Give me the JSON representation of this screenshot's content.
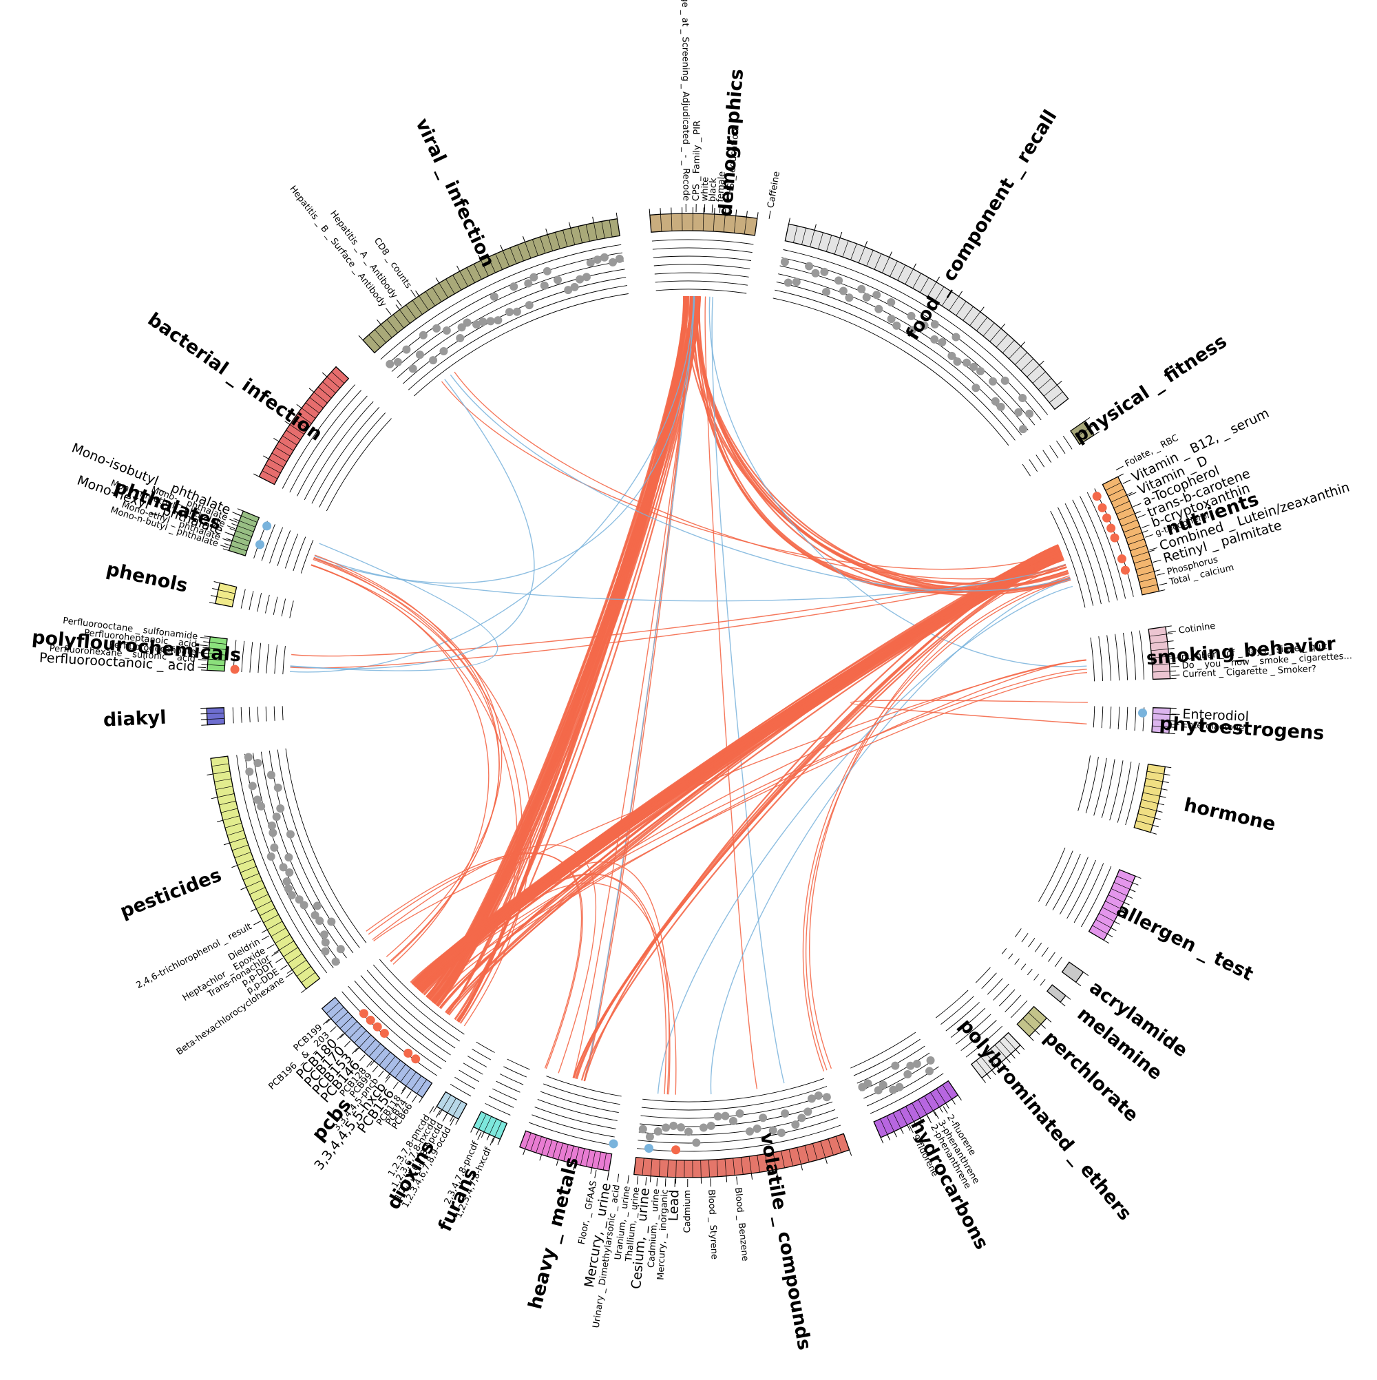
{
  "colors": {
    "positive": "#f4694a",
    "negative": "#79b3dc",
    "point_default": "#999999",
    "track_line": "#000000"
  },
  "categories": [
    {
      "name": "demographics",
      "color": "#c9ad7e",
      "start": -4.6,
      "end": 8.2,
      "n": 10
    },
    {
      "name": "food_component_recall",
      "color": "#e4e4e4",
      "start": 12.0,
      "end": 52.0,
      "n": 38,
      "gray_points": true
    },
    {
      "name": "physical_fitness",
      "color": "#a7a779",
      "start": 55.3,
      "end": 57.3,
      "n": 2
    },
    {
      "name": "nutrients",
      "color": "#f3b66f",
      "start": 63.0,
      "end": 77.5,
      "n": 18
    },
    {
      "name": "smoking_behavior",
      "color": "#ecc5d1",
      "start": 81.8,
      "end": 88.0,
      "n": 7
    },
    {
      "name": "phytoestrogens",
      "color": "#dcb5ee",
      "start": 91.5,
      "end": 94.5,
      "n": 4
    },
    {
      "name": "hormone",
      "color": "#f0df83",
      "start": 98.5,
      "end": 106.5,
      "n": 9
    },
    {
      "name": "allergen_test",
      "color": "#e496ec",
      "start": 112.0,
      "end": 120.5,
      "n": 10
    },
    {
      "name": "acrylamide",
      "color": "#c9c9c9",
      "start": 125.0,
      "end": 126.5,
      "n": 1
    },
    {
      "name": "melamine",
      "color": "#c9c9c9",
      "start": 128.5,
      "end": 129.5,
      "n": 1
    },
    {
      "name": "perchlorate",
      "color": "#c3c38a",
      "start": 132.0,
      "end": 135.0,
      "n": 3
    },
    {
      "name": "polybrominated_ethers",
      "color": "#e8e8e8",
      "start": 136.5,
      "end": 142.5,
      "n": 8
    },
    {
      "name": "hydrocarbons",
      "color": "#b766e0",
      "start": 146.0,
      "end": 156.5,
      "n": 12,
      "gray_points": true
    },
    {
      "name": "volatile_compounds",
      "color": "#e4766a",
      "start": 160.5,
      "end": 186.5,
      "n": 26,
      "gray_points": true
    },
    {
      "name": "heavy_metals",
      "color": "#e87cd2",
      "start": 189.5,
      "end": 200.5,
      "n": 16
    },
    {
      "name": "furans",
      "color": "#7de8dd",
      "start": 203.0,
      "end": 206.5,
      "n": 5
    },
    {
      "name": "dioxins",
      "color": "#b8d8e8",
      "start": 208.5,
      "end": 211.5,
      "n": 4
    },
    {
      "name": "pcbs",
      "color": "#a9bde8",
      "start": 213.5,
      "end": 229.5,
      "n": 20
    },
    {
      "name": "pesticides",
      "color": "#e2ec8e",
      "start": 232.5,
      "end": 262.5,
      "n": 32,
      "gray_points": true
    },
    {
      "name": "diakyl",
      "color": "#6e6ed0",
      "start": 266.5,
      "end": 268.5,
      "n": 3
    },
    {
      "name": "polyflourochemicals",
      "color": "#8be07c",
      "start": 273.0,
      "end": 277.0,
      "n": 6
    },
    {
      "name": "phenols",
      "color": "#f0ea8a",
      "start": 281.0,
      "end": 283.5,
      "n": 3
    },
    {
      "name": "phthalates",
      "color": "#98bf84",
      "start": 287.5,
      "end": 292.5,
      "n": 8
    },
    {
      "name": "bacterial_infection",
      "color": "#e66d6d",
      "start": 297.0,
      "end": 313.0,
      "n": 20
    },
    {
      "name": "viral_infection",
      "color": "#a9a979",
      "start": 317.5,
      "end": 351.5,
      "n": 36,
      "gray_points": true
    }
  ],
  "category_titles": [
    {
      "text": "demographics",
      "angle": 4.5
    },
    {
      "text": "food _ component _ recall",
      "angle": 32
    },
    {
      "text": "physical _ fitness",
      "angle": 56.5
    },
    {
      "text": "nutrients",
      "angle": 71
    },
    {
      "text": "smoking_behavior",
      "angle": 85.5
    },
    {
      "text": "phytoestrogens",
      "angle": 93.5
    },
    {
      "text": "hormone",
      "angle": 102.5
    },
    {
      "text": "allergen _ test",
      "angle": 116.5
    },
    {
      "text": "acrylamide",
      "angle": 125.8
    },
    {
      "text": "melamine",
      "angle": 129
    },
    {
      "text": "perchlorate",
      "angle": 133.5
    },
    {
      "text": "polybrominated _ ethers",
      "angle": 140
    },
    {
      "text": "hydrocarbons",
      "angle": 152
    },
    {
      "text": "volatile _ compounds",
      "angle": 170
    },
    {
      "text": "heavy _ metals",
      "angle": 194
    },
    {
      "text": "furans",
      "angle": 204.5
    },
    {
      "text": "dioxins",
      "angle": 210
    },
    {
      "text": "pcbs",
      "angle": 220
    },
    {
      "text": "pesticides",
      "angle": 249
    },
    {
      "text": "diakyl",
      "angle": 267.5
    },
    {
      "text": "polyflourochemicals",
      "angle": 275
    },
    {
      "text": "phenols",
      "angle": 282.2
    },
    {
      "text": "phthalates",
      "angle": 290
    },
    {
      "text": "bacterial _ infection",
      "angle": 305
    },
    {
      "text": "viral _ infection",
      "angle": 335
    }
  ],
  "variable_labels": [
    {
      "text": "Age _ at _ Screening _ Adjudicated _ - _ Recode",
      "angle": -0.3,
      "cls": "n"
    },
    {
      "text": "CPS _ Family _ PIR",
      "angle": 0.9,
      "cls": "n"
    },
    {
      "text": "white",
      "angle": 1.9,
      "cls": "n"
    },
    {
      "text": "black",
      "angle": 2.8,
      "cls": "n"
    },
    {
      "text": "female",
      "angle": 3.7,
      "cls": "n"
    },
    {
      "text": "<HS _ education",
      "angle": 4.8,
      "cls": "n"
    },
    {
      "text": "Caffeine",
      "angle": 9.6,
      "cls": "n"
    },
    {
      "text": "Folate, _ RBC",
      "angle": 62.2,
      "cls": "n"
    },
    {
      "text": "Vitamin _ B12, _ serum",
      "angle": 64.0,
      "cls": "p"
    },
    {
      "text": "Vitamin _ D",
      "angle": 65.6,
      "cls": "p"
    },
    {
      "text": "a-Tocopherol",
      "angle": 67.0,
      "cls": "p"
    },
    {
      "text": "trans-b-carotene",
      "angle": 68.4,
      "cls": "p"
    },
    {
      "text": "b-cryptoxanthin",
      "angle": 69.7,
      "cls": "p"
    },
    {
      "text": "g-tocopherol",
      "angle": 70.9,
      "cls": "n"
    },
    {
      "text": "Combined _ Lutein/zeaxanthin",
      "angle": 72.5,
      "cls": "p"
    },
    {
      "text": "Retinyl _ palmitate",
      "angle": 74.0,
      "cls": "p"
    },
    {
      "text": "Phosphorus",
      "angle": 75.6,
      "cls": "n"
    },
    {
      "text": "Total _ calcium",
      "angle": 76.8,
      "cls": "n"
    },
    {
      "text": "Cotinine",
      "angle": 82.5,
      "cls": "n"
    },
    {
      "text": "number _ of _ days _ since _ quit",
      "angle": 85.6,
      "cls": "n"
    },
    {
      "text": "Do _ you _ now _ smoke _ cigarettes...",
      "angle": 86.6,
      "cls": "n"
    },
    {
      "text": "Current _ Cigarette _ Smoker?",
      "angle": 87.6,
      "cls": "n"
    },
    {
      "text": "Enterodiol",
      "angle": 92.2,
      "cls": "b"
    },
    {
      "text": "Enterolactone",
      "angle": 93.4,
      "cls": "n"
    },
    {
      "text": "2-fluorene",
      "angle": 148.2,
      "cls": "n"
    },
    {
      "text": "3-phenanthrene",
      "angle": 149.4,
      "cls": "n"
    },
    {
      "text": "2-phenanthrene",
      "angle": 150.4,
      "cls": "n"
    },
    {
      "text": "9-fluorene",
      "angle": 152.8,
      "cls": "n"
    },
    {
      "text": "Blood _ Benzene",
      "angle": 174.3,
      "cls": "n"
    },
    {
      "text": "Blood _ Styrene",
      "angle": 177.4,
      "cls": "n"
    },
    {
      "text": "Cadmium",
      "angle": 180.1,
      "cls": "n"
    },
    {
      "text": "Lead",
      "angle": 181.6,
      "cls": "p"
    },
    {
      "text": "Mercury, _ inorganic",
      "angle": 182.7,
      "cls": "n"
    },
    {
      "text": "Cadmium, _ urine",
      "angle": 183.7,
      "cls": "n"
    },
    {
      "text": "Cesium, _ urine",
      "angle": 185.0,
      "cls": "b"
    },
    {
      "text": "Thallium, _ urine",
      "angle": 186.0,
      "cls": "n"
    },
    {
      "text": "Uranium, _ urine",
      "angle": 187.1,
      "cls": "n"
    },
    {
      "text": "Urinary _ Dimethylarsonic _ acid",
      "angle": 188.3,
      "cls": "n"
    },
    {
      "text": "Mercury, _ urine",
      "angle": 189.5,
      "cls": "b"
    },
    {
      "text": "Floor, _ GFAAS",
      "angle": 191.0,
      "cls": "n"
    },
    {
      "text": "1,2,3,4,7,8-hxcdf",
      "angle": 203.8,
      "cls": "n"
    },
    {
      "text": "2,3,4,7,8-pncdf",
      "angle": 205.4,
      "cls": "n"
    },
    {
      "text": "1,2,3,4,6,7,8,9-ocdd",
      "angle": 209.0,
      "cls": "n"
    },
    {
      "text": "1,2,3,4,6,7,8-hpcdd",
      "angle": 210.0,
      "cls": "n"
    },
    {
      "text": "1,2,3,6,7,8-hxcdd",
      "angle": 210.9,
      "cls": "n"
    },
    {
      "text": "1,2,3,7,8-pncdd",
      "angle": 211.8,
      "cls": "n"
    },
    {
      "text": "PCB66",
      "angle": 214.2,
      "cls": "n"
    },
    {
      "text": "PCB74",
      "angle": 215.0,
      "cls": "n"
    },
    {
      "text": "PCB118",
      "angle": 215.8,
      "cls": "n"
    },
    {
      "text": "PCB156",
      "angle": 216.9,
      "cls": "p"
    },
    {
      "text": "3,3,4,4,5,5-hxcb",
      "angle": 218.1,
      "cls": "p"
    },
    {
      "text": "3,3,4,4,5-pncb",
      "angle": 219.1,
      "cls": "n"
    },
    {
      "text": "PCB99",
      "angle": 220.0,
      "cls": "n"
    },
    {
      "text": "PCB128",
      "angle": 220.9,
      "cls": "n"
    },
    {
      "text": "PCB146",
      "angle": 222.0,
      "cls": "p"
    },
    {
      "text": "PCB153",
      "angle": 223.2,
      "cls": "p"
    },
    {
      "text": "PCB170",
      "angle": 224.4,
      "cls": "p"
    },
    {
      "text": "PCB180",
      "angle": 225.6,
      "cls": "p"
    },
    {
      "text": "PCB196 _ & _ 203",
      "angle": 226.8,
      "cls": "n"
    },
    {
      "text": "PCB199",
      "angle": 228.0,
      "cls": "n"
    },
    {
      "text": "Beta-hexachlorocyclohexane",
      "angle": 235.0,
      "cls": "n"
    },
    {
      "text": "p,p-DDE",
      "angle": 236.1,
      "cls": "n"
    },
    {
      "text": "p,p-DDT",
      "angle": 237.1,
      "cls": "n"
    },
    {
      "text": "Trans-nonachlor",
      "angle": 238.0,
      "cls": "n"
    },
    {
      "text": "Heptachlor _ Epoxide",
      "angle": 239.0,
      "cls": "n"
    },
    {
      "text": "Dieldrin",
      "angle": 240.2,
      "cls": "n"
    },
    {
      "text": "2,4,6-trichlorophenol _ result",
      "angle": 242.2,
      "cls": "n"
    },
    {
      "text": "Perfluorooctanoic _ acid",
      "angle": 273.3,
      "cls": "p"
    },
    {
      "text": "Perfluorohexane _ sulfonic _ acid",
      "angle": 274.2,
      "cls": "n"
    },
    {
      "text": "Perfluorodecanoate",
      "angle": 275.0,
      "cls": "n"
    },
    {
      "text": "Perfluoroheptanoic _ acid",
      "angle": 275.9,
      "cls": "n"
    },
    {
      "text": "Perfluorooctane _ sulfonamide",
      "angle": 276.8,
      "cls": "n"
    },
    {
      "text": "Mono-n-butyl _ phthalate",
      "angle": 287.8,
      "cls": "n"
    },
    {
      "text": "Mono-ethyl _ phthalate",
      "angle": 288.6,
      "cls": "n"
    },
    {
      "text": "Mono-hexyl _ phthalate",
      "angle": 289.4,
      "cls": "b"
    },
    {
      "text": "Mono-n-methyl _ phthalate",
      "angle": 290.2,
      "cls": "n"
    },
    {
      "text": "Mono- _ phthalate",
      "angle": 291.0,
      "cls": "n"
    },
    {
      "text": "Mono-isobutyl _ phthalate",
      "angle": 291.9,
      "cls": "b"
    },
    {
      "text": "Hepatitis _ B _ Surface _ Antibody",
      "angle": 322.0,
      "cls": "n"
    },
    {
      "text": "Hepatitis _ A _ Antibody",
      "angle": 323.6,
      "cls": "n"
    },
    {
      "text": "CD8 _ counts",
      "angle": 325.6,
      "cls": "n"
    }
  ],
  "links": [
    {
      "from": 0.5,
      "to": 220,
      "sign": "pos",
      "count": 40
    },
    {
      "from": 0.5,
      "to": 216,
      "sign": "pos",
      "count": 10
    },
    {
      "from": 0.5,
      "to": 72,
      "sign": "pos",
      "count": 12
    },
    {
      "from": 0.5,
      "to": 196,
      "sign": "pos",
      "count": 3
    },
    {
      "from": 0.5,
      "to": 274,
      "sign": "neg",
      "count": 1
    },
    {
      "from": 0.5,
      "to": 290,
      "sign": "neg",
      "count": 1
    },
    {
      "from": 0.5,
      "to": 196,
      "sign": "neg",
      "count": 1
    },
    {
      "from": 2.0,
      "to": 170,
      "sign": "pos",
      "count": 1
    },
    {
      "from": 3.0,
      "to": 165,
      "sign": "neg",
      "count": 1
    },
    {
      "from": 2.5,
      "to": 86,
      "sign": "neg",
      "count": 1
    },
    {
      "from": 69,
      "to": 223,
      "sign": "pos",
      "count": 45
    },
    {
      "from": 69,
      "to": 218,
      "sign": "pos",
      "count": 8
    },
    {
      "from": 69,
      "to": 196,
      "sign": "pos",
      "count": 6
    },
    {
      "from": 70,
      "to": 275,
      "sign": "pos",
      "count": 2
    },
    {
      "from": 70,
      "to": 290,
      "sign": "neg",
      "count": 1
    },
    {
      "from": 70,
      "to": 323,
      "sign": "pos",
      "count": 2
    },
    {
      "from": 72,
      "to": 160,
      "sign": "pos",
      "count": 3
    },
    {
      "from": 72,
      "to": 176,
      "sign": "neg",
      "count": 1
    },
    {
      "from": 73,
      "to": 185,
      "sign": "neg",
      "count": 1
    },
    {
      "from": 74,
      "to": 323,
      "sign": "neg",
      "count": 1
    },
    {
      "from": 86,
      "to": 221,
      "sign": "pos",
      "count": 4
    },
    {
      "from": 86,
      "to": 232,
      "sign": "pos",
      "count": 1
    },
    {
      "from": 92,
      "to": 93,
      "sign": "pos",
      "count": 1
    },
    {
      "from": 290,
      "to": 228,
      "sign": "pos",
      "count": 4
    },
    {
      "from": 290,
      "to": 215,
      "sign": "pos",
      "count": 3
    },
    {
      "from": 275,
      "to": 323,
      "sign": "neg",
      "count": 1
    },
    {
      "from": 275,
      "to": 292,
      "sign": "neg",
      "count": 1
    },
    {
      "from": 233,
      "to": 200,
      "sign": "pos",
      "count": 3
    },
    {
      "from": 222,
      "to": 183,
      "sign": "pos",
      "count": 4
    }
  ]
}
